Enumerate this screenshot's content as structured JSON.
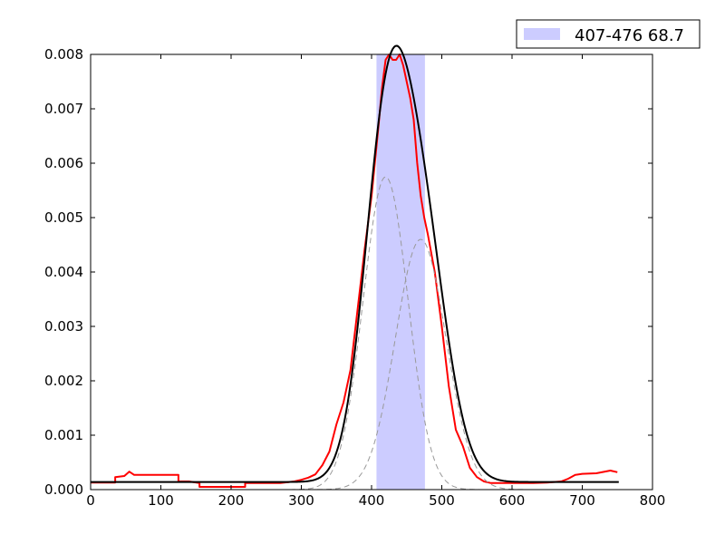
{
  "chart_data": {
    "type": "line",
    "xlim": [
      0,
      800
    ],
    "ylim": [
      0,
      0.008
    ],
    "x_ticks": [
      0,
      100,
      200,
      300,
      400,
      500,
      600,
      700,
      800
    ],
    "y_ticks": [
      0.0,
      0.001,
      0.002,
      0.003,
      0.004,
      0.005,
      0.006,
      0.007,
      0.008
    ],
    "x_tick_labels": [
      "0",
      "100",
      "200",
      "300",
      "400",
      "500",
      "600",
      "700",
      "800"
    ],
    "y_tick_labels": [
      "0.000",
      "0.001",
      "0.002",
      "0.003",
      "0.004",
      "0.005",
      "0.006",
      "0.007",
      "0.008"
    ],
    "grid": false,
    "legend_position": "top-right, above axes",
    "span": {
      "label": "407-476 68.7",
      "x_start": 407,
      "x_end": 476,
      "color": "#ccccff"
    },
    "series": [
      {
        "kind": "observed",
        "color": "#ff0000",
        "x": [
          0,
          35,
          35,
          48,
          55,
          62,
          80,
          100,
          125,
          125,
          140,
          155,
          155,
          200,
          220,
          220,
          250,
          270,
          290,
          300,
          310,
          320,
          330,
          340,
          350,
          360,
          370,
          380,
          390,
          400,
          410,
          415,
          420,
          425,
          430,
          435,
          440,
          445,
          450,
          455,
          460,
          465,
          470,
          475,
          480,
          490,
          500,
          510,
          520,
          530,
          540,
          550,
          560,
          570,
          600,
          630,
          650,
          670,
          680,
          690,
          700,
          720,
          740,
          750
        ],
        "y": [
          0.00013,
          0.00013,
          0.00023,
          0.00025,
          0.00033,
          0.00027,
          0.00027,
          0.00027,
          0.00027,
          0.00015,
          0.00015,
          0.00012,
          5e-05,
          5e-05,
          5e-05,
          0.00012,
          0.00012,
          0.00012,
          0.00015,
          0.00018,
          0.00022,
          0.00028,
          0.00045,
          0.0007,
          0.0012,
          0.0016,
          0.0022,
          0.0033,
          0.0044,
          0.0054,
          0.0067,
          0.0074,
          0.0079,
          0.008,
          0.0079,
          0.0079,
          0.008,
          0.0078,
          0.0075,
          0.0072,
          0.0068,
          0.006,
          0.0054,
          0.005,
          0.0047,
          0.004,
          0.003,
          0.0019,
          0.0011,
          0.0008,
          0.0004,
          0.00023,
          0.00015,
          0.00012,
          0.00012,
          0.00012,
          0.00013,
          0.00015,
          0.0002,
          0.00027,
          0.00029,
          0.0003,
          0.00035,
          0.00032
        ]
      },
      {
        "kind": "fit-total",
        "color": "#000000",
        "baseline": 0.00014,
        "components": [
          {
            "amplitude": 0.00575,
            "center": 420,
            "sigma": 32
          },
          {
            "amplitude": 0.0046,
            "center": 470,
            "sigma": 36
          }
        ],
        "x_range": [
          0,
          752
        ]
      },
      {
        "kind": "fit-component",
        "color": "#999999",
        "dashed": true,
        "amplitude": 0.00575,
        "center": 420,
        "sigma": 32,
        "x_range": [
          0,
          752
        ]
      },
      {
        "kind": "fit-component",
        "color": "#999999",
        "dashed": true,
        "amplitude": 0.0046,
        "center": 470,
        "sigma": 36,
        "x_range": [
          0,
          752
        ]
      }
    ]
  }
}
